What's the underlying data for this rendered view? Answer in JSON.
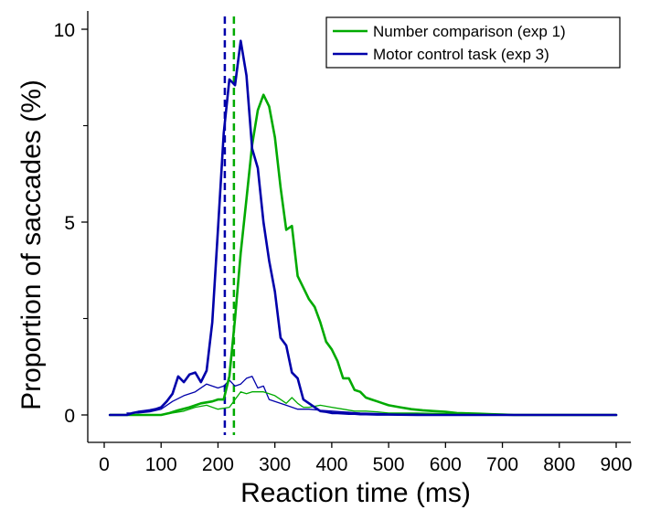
{
  "chart_data": {
    "type": "line",
    "xlabel": "Reaction time (ms)",
    "ylabel": "Proportion of saccades (%)",
    "xlim": [
      0,
      900
    ],
    "ylim": [
      -0.7,
      10.5
    ],
    "xticks": [
      0,
      100,
      200,
      300,
      400,
      500,
      600,
      700,
      800,
      900
    ],
    "yticks_major": [
      0,
      5,
      10
    ],
    "yticks_minor": [
      2.5,
      7.5
    ],
    "grid": false,
    "legend_position": "top-right",
    "series": [
      {
        "name": "Number comparison (exp 1)",
        "color": "#00aa00",
        "line": "thick",
        "x": [
          10,
          60,
          100,
          115,
          130,
          150,
          170,
          190,
          200,
          210,
          220,
          230,
          240,
          250,
          260,
          270,
          280,
          290,
          300,
          310,
          320,
          330,
          340,
          350,
          360,
          370,
          380,
          390,
          400,
          410,
          420,
          430,
          440,
          450,
          460,
          470,
          480,
          490,
          500,
          520,
          540,
          560,
          580,
          600,
          620,
          640,
          660,
          680,
          700,
          720,
          760,
          800,
          850,
          900
        ],
        "values": [
          0,
          0,
          0,
          0.05,
          0.12,
          0.2,
          0.3,
          0.35,
          0.4,
          0.4,
          1.0,
          2.5,
          4.2,
          5.6,
          7.0,
          7.9,
          8.3,
          8.0,
          7.2,
          5.9,
          4.8,
          4.9,
          3.6,
          3.3,
          3.0,
          2.8,
          2.4,
          1.9,
          1.7,
          1.4,
          0.95,
          0.95,
          0.65,
          0.6,
          0.45,
          0.4,
          0.35,
          0.3,
          0.25,
          0.2,
          0.15,
          0.12,
          0.1,
          0.08,
          0.05,
          0.04,
          0.03,
          0.02,
          0.01,
          0,
          0,
          0,
          0,
          0
        ]
      },
      {
        "name": "Motor control task (exp 3)",
        "color": "#0000aa",
        "line": "thick",
        "x": [
          10,
          40,
          50,
          60,
          70,
          80,
          90,
          100,
          110,
          120,
          130,
          140,
          150,
          160,
          170,
          180,
          190,
          200,
          210,
          220,
          230,
          240,
          250,
          260,
          270,
          280,
          290,
          300,
          310,
          320,
          330,
          340,
          350,
          360,
          370,
          380,
          390,
          400,
          410,
          420,
          430,
          440,
          450,
          460,
          480,
          500,
          550,
          600,
          650,
          700,
          800,
          900
        ],
        "values": [
          0,
          0,
          0.05,
          0.08,
          0.1,
          0.12,
          0.15,
          0.2,
          0.35,
          0.55,
          1.0,
          0.85,
          1.05,
          1.1,
          0.85,
          1.15,
          2.4,
          4.8,
          7.3,
          8.7,
          8.55,
          9.7,
          8.8,
          6.9,
          6.4,
          5.0,
          4.0,
          3.2,
          2.0,
          1.8,
          1.1,
          0.95,
          0.4,
          0.3,
          0.2,
          0.1,
          0.08,
          0.05,
          0.05,
          0.04,
          0.03,
          0.03,
          0.02,
          0.02,
          0.01,
          0.01,
          0,
          0,
          0,
          0,
          0,
          0
        ]
      },
      {
        "color": "#00aa00",
        "line": "thin",
        "x": [
          100,
          120,
          140,
          160,
          180,
          200,
          220,
          230,
          240,
          250,
          260,
          270,
          280,
          290,
          300,
          310,
          320,
          330,
          340,
          350,
          360,
          380,
          400,
          420,
          440,
          460,
          480,
          500,
          550,
          600,
          650,
          700
        ],
        "values": [
          0,
          0.05,
          0.1,
          0.2,
          0.25,
          0.15,
          0.2,
          0.4,
          0.6,
          0.55,
          0.6,
          0.6,
          0.6,
          0.55,
          0.5,
          0.4,
          0.3,
          0.45,
          0.3,
          0.2,
          0.2,
          0.25,
          0.2,
          0.15,
          0.1,
          0.1,
          0.08,
          0.05,
          0.05,
          0.03,
          0.02,
          0
        ]
      },
      {
        "color": "#0000aa",
        "line": "thin",
        "x": [
          40,
          60,
          80,
          100,
          120,
          140,
          160,
          180,
          200,
          210,
          220,
          230,
          240,
          250,
          260,
          270,
          280,
          290,
          300,
          320,
          340,
          360,
          380,
          400,
          420,
          450,
          500,
          550,
          600,
          650,
          700
        ],
        "values": [
          0.05,
          0.05,
          0.08,
          0.15,
          0.35,
          0.5,
          0.6,
          0.8,
          0.7,
          0.75,
          0.9,
          0.75,
          0.8,
          0.95,
          1.0,
          0.7,
          0.75,
          0.4,
          0.35,
          0.25,
          0.15,
          0.15,
          0.12,
          0.1,
          0.08,
          0.05,
          0.03,
          0.02,
          0.01,
          0,
          0
        ]
      }
    ],
    "vlines": [
      {
        "x": 212,
        "color": "#0000aa",
        "style": "dashed"
      },
      {
        "x": 228,
        "color": "#00aa00",
        "style": "dashed"
      }
    ]
  }
}
